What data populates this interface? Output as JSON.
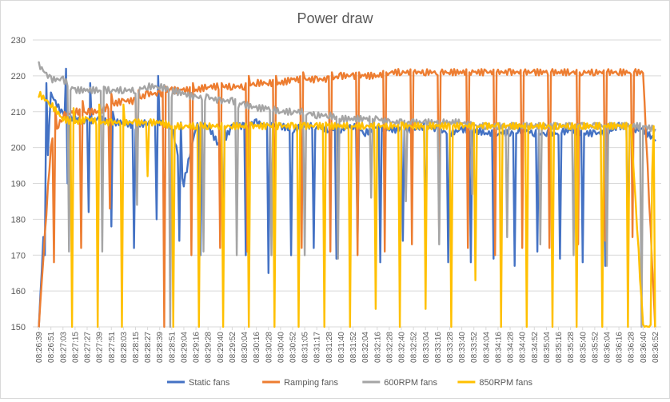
{
  "chart_data": {
    "type": "line",
    "title": "Power draw",
    "xlabel": "",
    "ylabel": "",
    "ylim": [
      150,
      230
    ],
    "yticks": [
      150,
      160,
      170,
      180,
      190,
      200,
      210,
      220,
      230
    ],
    "grid": "horizontal",
    "legend_position": "bottom",
    "categories": [
      "08:26:39",
      "08:26:51",
      "08:27:03",
      "08:27:15",
      "08:27:27",
      "08:27:39",
      "08:27:51",
      "08:28:03",
      "08:28:15",
      "08:28:27",
      "08:28:39",
      "08:28:51",
      "08:29:04",
      "08:29:16",
      "08:29:28",
      "08:29:40",
      "08:29:52",
      "08:30:04",
      "08:30:16",
      "08:30:28",
      "08:30:40",
      "08:30:52",
      "08:31:05",
      "08:31:17",
      "08:31:28",
      "08:31:40",
      "08:31:52",
      "08:32:04",
      "08:32:16",
      "08:32:28",
      "08:32:40",
      "08:32:52",
      "08:33:04",
      "08:33:16",
      "08:33:28",
      "08:33:40",
      "08:33:52",
      "08:34:04",
      "08:34:16",
      "08:34:28",
      "08:34:40",
      "08:34:52",
      "08:35:04",
      "08:35:16",
      "08:35:28",
      "08:35:40",
      "08:35:52",
      "08:36:04",
      "08:36:16",
      "08:36:28",
      "08:36:40",
      "08:36:52"
    ],
    "series": [
      {
        "name": "Static fans",
        "color": "#4472c4",
        "values": [
          150,
          215,
          209,
          208,
          207,
          208,
          207,
          207,
          206,
          207,
          207,
          206,
          190,
          206,
          206,
          200,
          206,
          206,
          207,
          206,
          206,
          205,
          206,
          206,
          205,
          205,
          206,
          204,
          206,
          205,
          205,
          205,
          206,
          205,
          204,
          205,
          205,
          204,
          204,
          204,
          205,
          204,
          204,
          204,
          205,
          204,
          204,
          204,
          206,
          205,
          205,
          202
        ],
        "dips": [
          [
            170,
            218
          ],
          [
            222,
            190
          ],
          [
            182,
            218
          ],
          [
            178,
            210
          ],
          [
            172,
            205
          ],
          [
            180,
            220
          ],
          [
            174,
            207
          ],
          [
            170,
            206
          ],
          [
            172,
            206
          ],
          [
            170,
            205
          ],
          [
            165,
            206
          ],
          [
            170,
            204
          ],
          [
            172,
            205
          ],
          [
            169,
            206
          ],
          [
            174,
            205
          ],
          [
            168,
            206
          ],
          [
            174,
            205
          ],
          [
            169,
            206
          ],
          [
            168,
            204
          ],
          [
            168,
            204
          ],
          [
            169,
            204
          ],
          [
            167,
            204
          ],
          [
            171,
            204
          ],
          [
            169,
            204
          ],
          [
            168,
            204
          ],
          [
            167,
            204
          ],
          [
            170,
            204
          ]
        ]
      },
      {
        "name": "Ramping fans",
        "color": "#ed7d31",
        "values": [
          150,
          201,
          209,
          210,
          210,
          210,
          212,
          213,
          213,
          215,
          215,
          216,
          216,
          216,
          217,
          217,
          217,
          217,
          218,
          218,
          218,
          219,
          219,
          219,
          219,
          220,
          220,
          220,
          220,
          221,
          221,
          221,
          221,
          221,
          221,
          221,
          221,
          221,
          221,
          221,
          221,
          221,
          221,
          221,
          221,
          221,
          221,
          221,
          221,
          221,
          221,
          150
        ],
        "dips": [
          [
            168,
            211
          ],
          [
            172,
            213
          ],
          [
            183,
            215
          ],
          [
            190,
            216
          ],
          [
            150,
            217
          ],
          [
            170,
            218
          ],
          [
            172,
            218
          ],
          [
            171,
            220
          ],
          [
            172,
            220
          ],
          [
            172,
            221
          ],
          [
            171,
            221
          ],
          [
            170,
            221
          ],
          [
            171,
            221
          ],
          [
            173,
            221
          ],
          [
            175,
            221
          ],
          [
            172,
            221
          ],
          [
            170,
            221
          ],
          [
            172,
            221
          ],
          [
            172,
            221
          ],
          [
            173,
            221
          ],
          [
            174,
            221
          ],
          [
            175,
            221
          ]
        ]
      },
      {
        "name": "600RPM fans",
        "color": "#a5a5a5",
        "values": [
          223,
          219,
          219,
          216,
          216,
          216,
          216,
          216,
          216,
          217,
          217,
          216,
          215,
          214,
          214,
          213,
          213,
          212,
          211,
          211,
          210,
          210,
          210,
          209,
          209,
          208,
          208,
          208,
          208,
          207,
          207,
          207,
          207,
          207,
          207,
          207,
          206,
          206,
          206,
          206,
          206,
          206,
          206,
          206,
          206,
          206,
          206,
          206,
          206,
          206,
          206,
          205
        ],
        "dips": [
          [
            171,
            216
          ],
          [
            171,
            217
          ],
          [
            184,
            215
          ],
          [
            150,
            214
          ],
          [
            171,
            213
          ],
          [
            170,
            211
          ],
          [
            170,
            210
          ],
          [
            170,
            209
          ],
          [
            169,
            208
          ],
          [
            186,
            208
          ],
          [
            185,
            207
          ],
          [
            173,
            207
          ],
          [
            187,
            206
          ],
          [
            175,
            206
          ],
          [
            173,
            206
          ],
          [
            170,
            206
          ],
          [
            167,
            206
          ],
          [
            150,
            206
          ]
        ]
      },
      {
        "name": "850RPM fans",
        "color": "#ffc000",
        "values": [
          215,
          212,
          208,
          207,
          208,
          207,
          207,
          207,
          207,
          207,
          207,
          206,
          206,
          206,
          206,
          206,
          206,
          206,
          206,
          206,
          206,
          206,
          206,
          206,
          206,
          206,
          206,
          206,
          206,
          206,
          206,
          206,
          206,
          206,
          206,
          206,
          206,
          206,
          206,
          206,
          206,
          206,
          206,
          206,
          206,
          206,
          206,
          206,
          206,
          206,
          150,
          150
        ],
        "dips": [
          [
            150,
            211
          ],
          [
            150,
            212
          ],
          [
            150,
            212
          ],
          [
            192,
            207
          ],
          [
            150,
            206
          ],
          [
            150,
            207
          ],
          [
            150,
            206
          ],
          [
            150,
            207
          ],
          [
            150,
            207
          ],
          [
            150,
            207
          ],
          [
            150,
            207
          ],
          [
            150,
            206
          ],
          [
            155,
            206
          ],
          [
            150,
            207
          ],
          [
            155,
            206
          ],
          [
            150,
            206
          ],
          [
            163,
            206
          ],
          [
            150,
            206
          ],
          [
            150,
            206
          ],
          [
            150,
            206
          ],
          [
            150,
            206
          ],
          [
            150,
            206
          ],
          [
            150,
            206
          ],
          [
            193,
            206
          ]
        ]
      }
    ]
  }
}
